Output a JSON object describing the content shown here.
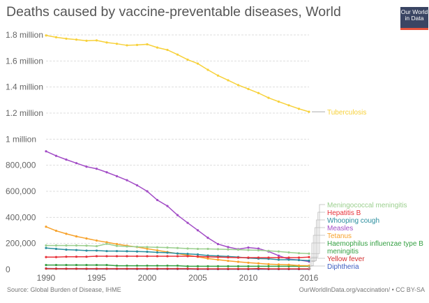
{
  "title": "Deaths caused by vaccine-preventable diseases, World",
  "logo": {
    "line1": "Our World",
    "line2": "in Data"
  },
  "source": "Source: Global Burden of Disease, IHME",
  "license": "OurWorldInData.org/vaccination/ • CC BY-SA",
  "chart_data": {
    "type": "line",
    "title": "Deaths caused by vaccine-preventable diseases, World",
    "xlim": [
      1990,
      2016
    ],
    "ylim": [
      0,
      1800000
    ],
    "grid": true,
    "x_ticks": [
      1990,
      1995,
      2000,
      2005,
      2010,
      2016
    ],
    "y_ticks": [
      {
        "value": 0,
        "label": "0"
      },
      {
        "value": 200000,
        "label": "200,000"
      },
      {
        "value": 400000,
        "label": "400,000"
      },
      {
        "value": 600000,
        "label": "600,000"
      },
      {
        "value": 800000,
        "label": "800,000"
      },
      {
        "value": 1000000,
        "label": "1 million"
      },
      {
        "value": 1200000,
        "label": "1.2 million"
      },
      {
        "value": 1400000,
        "label": "1.4 million"
      },
      {
        "value": 1600000,
        "label": "1.6 million"
      },
      {
        "value": 1800000,
        "label": "1.8 million"
      }
    ],
    "x": [
      1990,
      1991,
      1992,
      1993,
      1994,
      1995,
      1996,
      1997,
      1998,
      1999,
      2000,
      2001,
      2002,
      2003,
      2004,
      2005,
      2006,
      2007,
      2008,
      2009,
      2010,
      2011,
      2012,
      2013,
      2014,
      2015,
      2016
    ],
    "series": [
      {
        "name": "Tuberculosis",
        "color": "#f7d13a",
        "values": [
          1796000,
          1782000,
          1771000,
          1764000,
          1755000,
          1758000,
          1742000,
          1732000,
          1720000,
          1723000,
          1728000,
          1703000,
          1685000,
          1649000,
          1610000,
          1580000,
          1532000,
          1488000,
          1452000,
          1415000,
          1385000,
          1354000,
          1317000,
          1288000,
          1260000,
          1233000,
          1210000
        ]
      },
      {
        "name": "Meningococcal meningitis",
        "color": "#9bcf8e",
        "values": [
          184000,
          184000,
          184000,
          184000,
          183000,
          179000,
          197000,
          181000,
          177000,
          174000,
          172000,
          170000,
          168000,
          165000,
          161000,
          158000,
          158000,
          156000,
          154000,
          152000,
          149000,
          147000,
          143000,
          138000,
          131000,
          125000,
          122000
        ]
      },
      {
        "name": "Hepatitis B",
        "color": "#e8323a",
        "values": [
          95000,
          95000,
          98000,
          98000,
          98000,
          102000,
          102000,
          102000,
          102000,
          102000,
          102000,
          102000,
          102000,
          102000,
          102000,
          100000,
          97000,
          95000,
          93000,
          91000,
          91000,
          91000,
          91000,
          91000,
          91000,
          91000,
          95000
        ]
      },
      {
        "name": "Whooping cough",
        "color": "#2a8e9e",
        "values": [
          165000,
          158000,
          152000,
          149000,
          145000,
          145000,
          141000,
          141000,
          140000,
          138000,
          136000,
          131000,
          129000,
          123000,
          120000,
          115000,
          107000,
          104000,
          100000,
          95000,
          88000,
          84000,
          82000,
          75000,
          75000,
          72000,
          68000
        ]
      },
      {
        "name": "Measles",
        "color": "#a24cc6",
        "values": [
          907000,
          872000,
          843000,
          816000,
          789000,
          773000,
          746000,
          716000,
          685000,
          646000,
          600000,
          533000,
          487000,
          417000,
          358000,
          301000,
          243000,
          195000,
          172000,
          156000,
          168000,
          161000,
          138000,
          106000,
          79000,
          73000,
          61000
        ]
      },
      {
        "name": "Tetanus",
        "color": "#f7a22b",
        "values": [
          328000,
          297000,
          274000,
          254000,
          238000,
          222000,
          209000,
          195000,
          183000,
          172000,
          159000,
          147000,
          134000,
          122000,
          109000,
          97000,
          84000,
          75000,
          66000,
          59000,
          52000,
          47000,
          41000,
          38000,
          36000,
          30000,
          29000
        ]
      },
      {
        "name": "Haemophilus influenzae type B meningitis",
        "label_lines": [
          "Haemophilus influenzae type B",
          "meningitis"
        ],
        "color": "#35a043",
        "values": [
          34000,
          34000,
          34000,
          34000,
          34000,
          34000,
          34000,
          29000,
          29000,
          29000,
          29000,
          29000,
          29000,
          29000,
          25000,
          25000,
          25000,
          25000,
          25000,
          25000,
          25000,
          25000,
          25000,
          25000,
          25000,
          25000,
          25000
        ]
      },
      {
        "name": "Yellow fever",
        "color": "#d42b2b",
        "values": [
          7000,
          6000,
          6000,
          6000,
          6000,
          6000,
          6000,
          6000,
          6000,
          6000,
          6000,
          6000,
          6000,
          6000,
          6000,
          5000,
          5000,
          5000,
          5000,
          5000,
          5000,
          7000,
          5000,
          5000,
          5000,
          5000,
          5000
        ]
      },
      {
        "name": "Diphtheria",
        "color": "#3b5cc0",
        "values": [
          8000,
          7000,
          6000,
          6000,
          5000,
          5000,
          5000,
          5000,
          5000,
          4000,
          4000,
          4000,
          4000,
          4000,
          4000,
          3000,
          3000,
          3000,
          3000,
          3000,
          3000,
          3000,
          3000,
          3000,
          3000,
          3000,
          3000
        ]
      }
    ],
    "legend": "right-end-labels"
  }
}
